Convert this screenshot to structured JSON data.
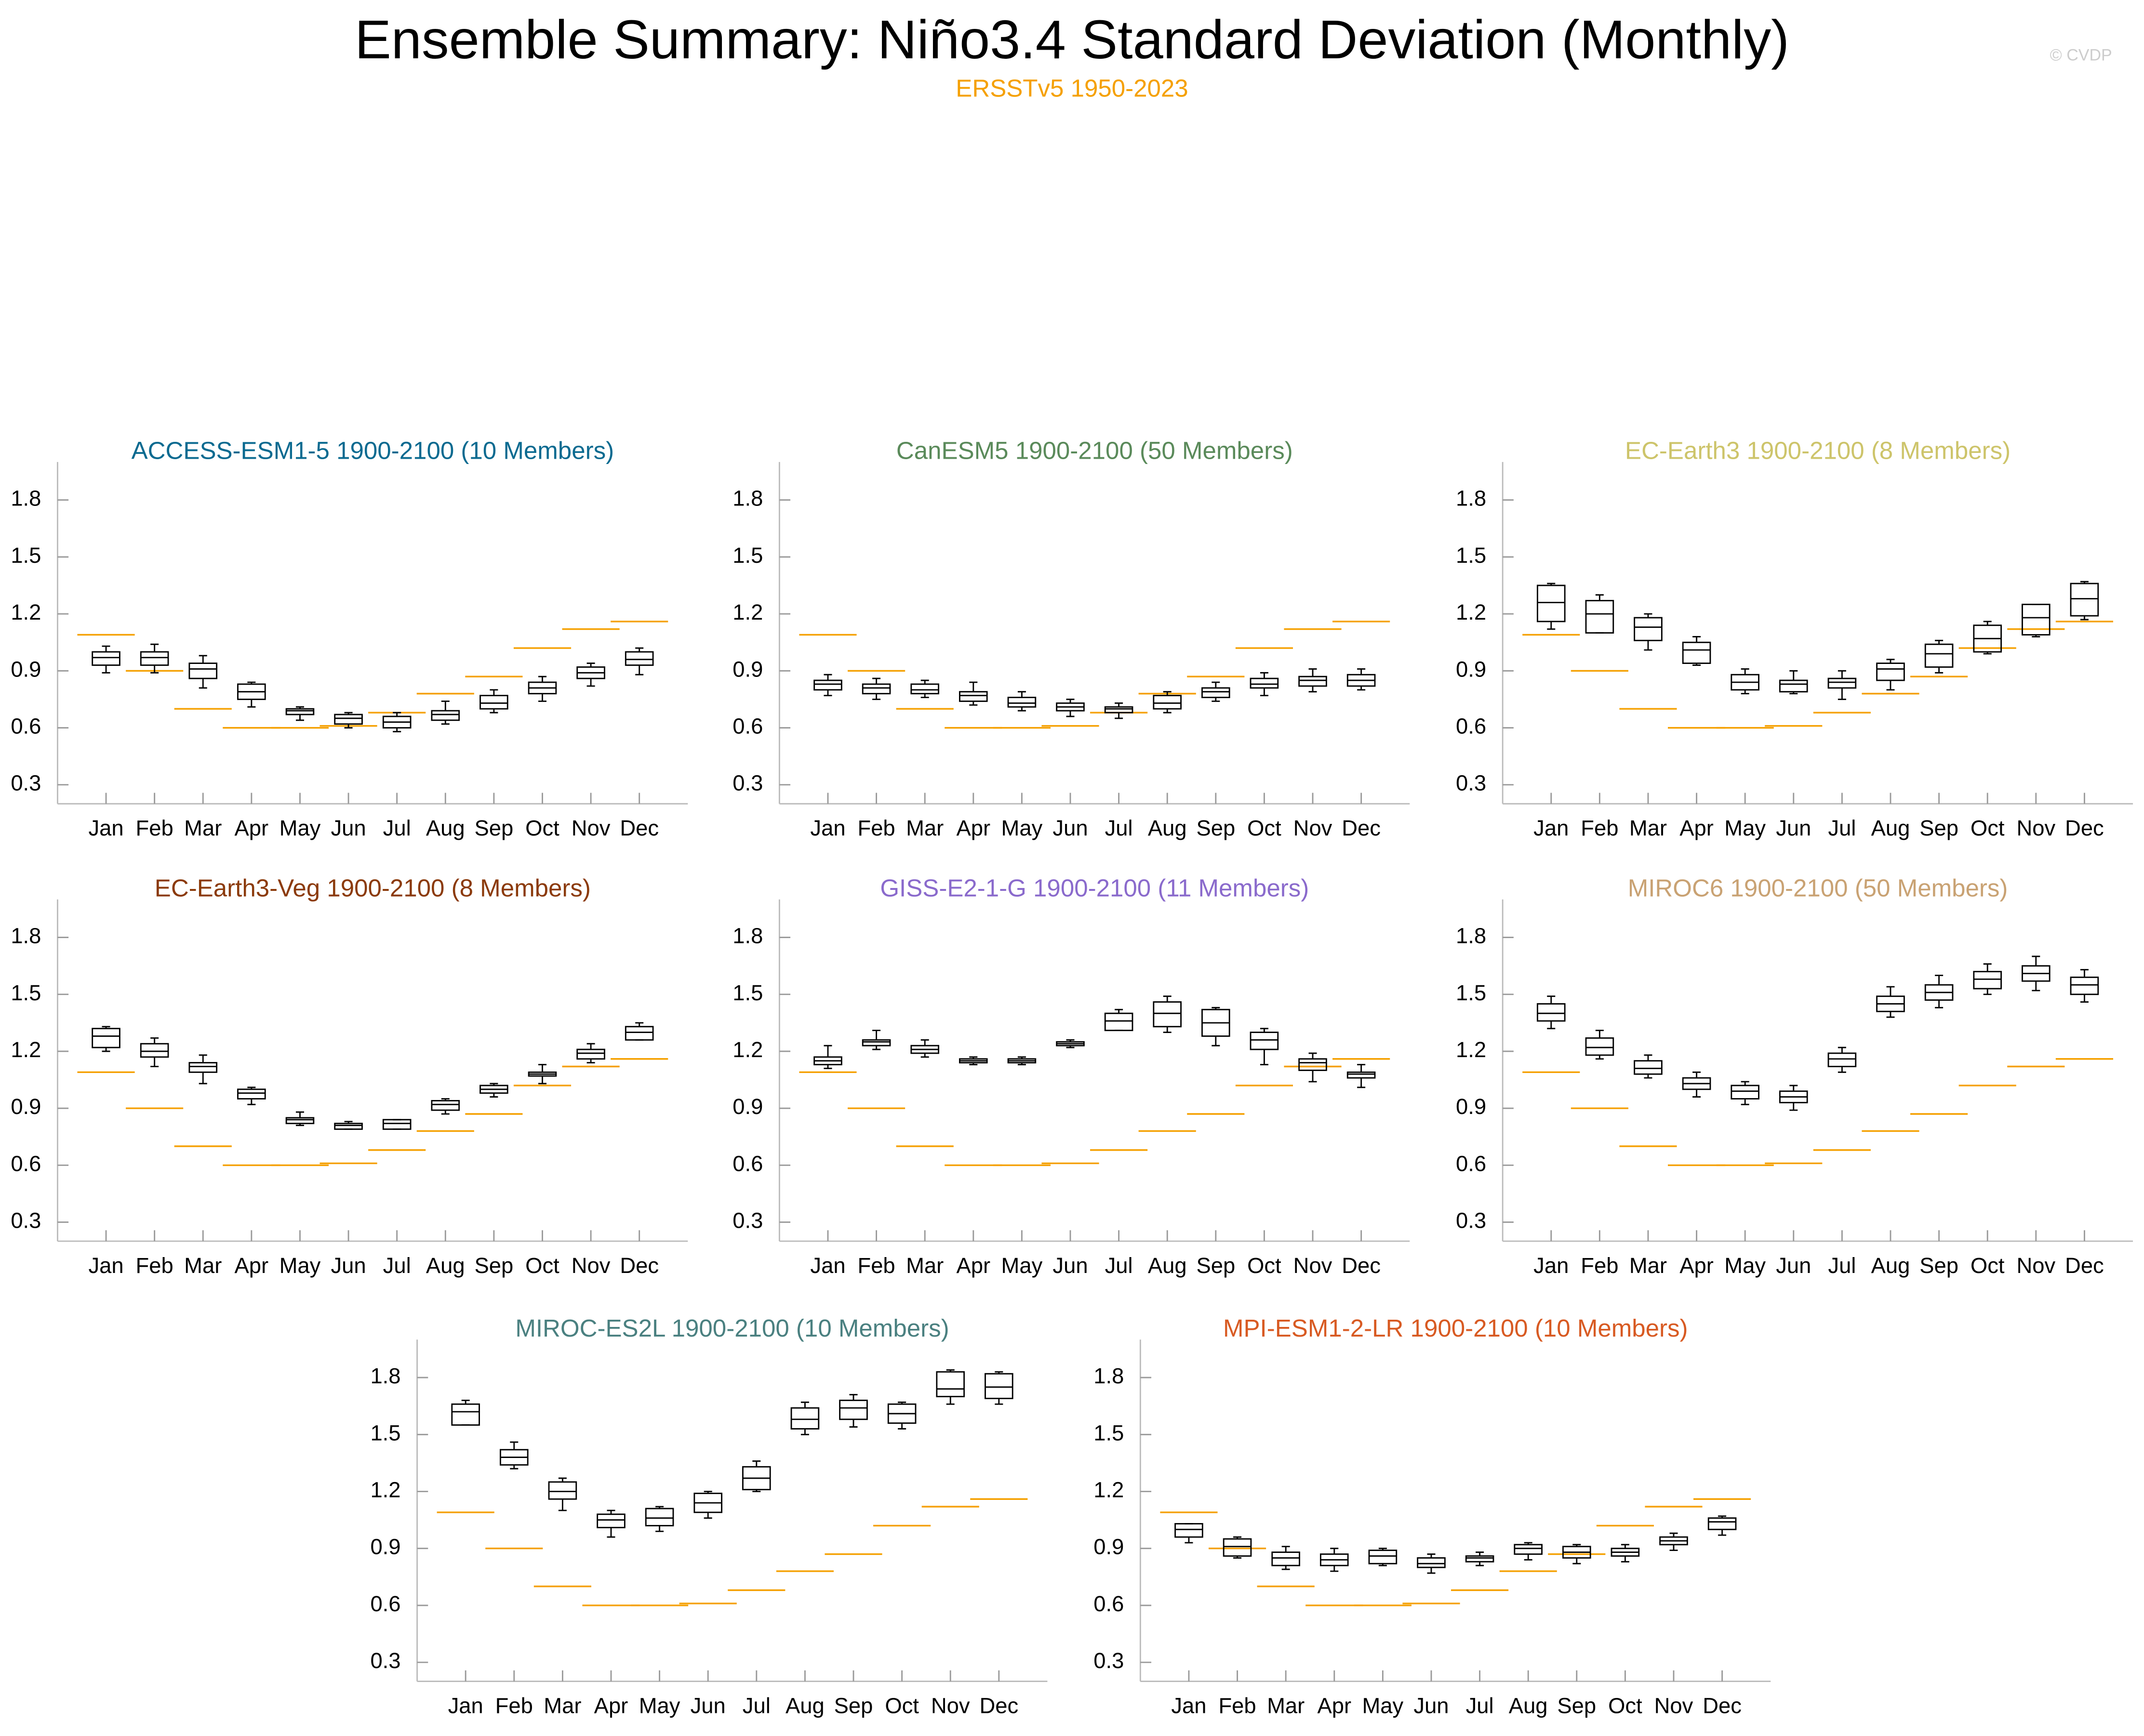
{
  "header": {
    "title": "Ensemble Summary: Niño3.4 Standard Deviation (Monthly)",
    "subtitle": "ERSSTv5 1950-2023",
    "subtitle_color": "#f5a000",
    "credit": "© CVDP"
  },
  "chart_data": [
    {
      "type": "box",
      "title": "ACCESS-ESM1-5 1900-2100 (10 Members)",
      "color": "#0a6a90",
      "categories": [
        "Jan",
        "Feb",
        "Mar",
        "Apr",
        "May",
        "Jun",
        "Jul",
        "Aug",
        "Sep",
        "Oct",
        "Nov",
        "Dec"
      ],
      "min": [
        0.89,
        0.89,
        0.81,
        0.71,
        0.64,
        0.6,
        0.58,
        0.62,
        0.68,
        0.74,
        0.82,
        0.88
      ],
      "q1": [
        0.93,
        0.93,
        0.86,
        0.75,
        0.67,
        0.62,
        0.6,
        0.64,
        0.7,
        0.78,
        0.86,
        0.93
      ],
      "median": [
        0.97,
        0.97,
        0.91,
        0.79,
        0.69,
        0.65,
        0.63,
        0.67,
        0.73,
        0.81,
        0.89,
        0.96
      ],
      "q3": [
        1.0,
        1.0,
        0.94,
        0.83,
        0.7,
        0.67,
        0.66,
        0.69,
        0.77,
        0.84,
        0.92,
        1.0
      ],
      "max": [
        1.03,
        1.04,
        0.98,
        0.84,
        0.71,
        0.68,
        0.68,
        0.74,
        0.8,
        0.87,
        0.94,
        1.02
      ],
      "reference": [
        1.09,
        0.9,
        0.7,
        0.6,
        0.6,
        0.61,
        0.68,
        0.78,
        0.87,
        1.02,
        1.12,
        1.16
      ],
      "reference_color": "#f5a000",
      "ylim": [
        0.2,
        2.0
      ],
      "yticks": [
        0.3,
        0.6,
        0.9,
        1.2,
        1.5,
        1.8
      ]
    },
    {
      "type": "box",
      "title": "CanESM5 1900-2100 (50 Members)",
      "color": "#5a8a5a",
      "categories": [
        "Jan",
        "Feb",
        "Mar",
        "Apr",
        "May",
        "Jun",
        "Jul",
        "Aug",
        "Sep",
        "Oct",
        "Nov",
        "Dec"
      ],
      "min": [
        0.77,
        0.75,
        0.76,
        0.72,
        0.69,
        0.66,
        0.65,
        0.68,
        0.74,
        0.77,
        0.79,
        0.8
      ],
      "q1": [
        0.8,
        0.78,
        0.78,
        0.74,
        0.71,
        0.69,
        0.68,
        0.7,
        0.76,
        0.81,
        0.82,
        0.82
      ],
      "median": [
        0.83,
        0.81,
        0.8,
        0.77,
        0.73,
        0.71,
        0.7,
        0.73,
        0.79,
        0.83,
        0.85,
        0.85
      ],
      "q3": [
        0.85,
        0.83,
        0.83,
        0.79,
        0.76,
        0.73,
        0.71,
        0.77,
        0.81,
        0.86,
        0.87,
        0.88
      ],
      "max": [
        0.88,
        0.86,
        0.85,
        0.84,
        0.79,
        0.75,
        0.73,
        0.79,
        0.84,
        0.89,
        0.91,
        0.91
      ],
      "reference": [
        1.09,
        0.9,
        0.7,
        0.6,
        0.6,
        0.61,
        0.68,
        0.78,
        0.87,
        1.02,
        1.12,
        1.16
      ],
      "reference_color": "#f5a000",
      "ylim": [
        0.2,
        2.0
      ],
      "yticks": [
        0.3,
        0.6,
        0.9,
        1.2,
        1.5,
        1.8
      ]
    },
    {
      "type": "box",
      "title": "EC-Earth3 1900-2100 (8 Members)",
      "color": "#cdc46a",
      "categories": [
        "Jan",
        "Feb",
        "Mar",
        "Apr",
        "May",
        "Jun",
        "Jul",
        "Aug",
        "Sep",
        "Oct",
        "Nov",
        "Dec"
      ],
      "min": [
        1.12,
        1.1,
        1.01,
        0.93,
        0.78,
        0.78,
        0.75,
        0.8,
        0.89,
        0.99,
        1.08,
        1.17
      ],
      "q1": [
        1.16,
        1.1,
        1.06,
        0.94,
        0.8,
        0.79,
        0.81,
        0.85,
        0.92,
        1.0,
        1.09,
        1.19
      ],
      "median": [
        1.26,
        1.2,
        1.13,
        1.01,
        0.84,
        0.83,
        0.84,
        0.91,
        0.99,
        1.07,
        1.18,
        1.28
      ],
      "q3": [
        1.35,
        1.27,
        1.18,
        1.05,
        0.88,
        0.85,
        0.86,
        0.94,
        1.04,
        1.14,
        1.25,
        1.36
      ],
      "max": [
        1.36,
        1.3,
        1.2,
        1.08,
        0.91,
        0.9,
        0.9,
        0.96,
        1.06,
        1.16,
        1.25,
        1.37
      ],
      "reference": [
        1.09,
        0.9,
        0.7,
        0.6,
        0.6,
        0.61,
        0.68,
        0.78,
        0.87,
        1.02,
        1.12,
        1.16
      ],
      "reference_color": "#f5a000",
      "ylim": [
        0.2,
        2.0
      ],
      "yticks": [
        0.3,
        0.6,
        0.9,
        1.2,
        1.5,
        1.8
      ]
    },
    {
      "type": "box",
      "title": "EC-Earth3-Veg 1900-2100 (8 Members)",
      "color": "#8b3a0a",
      "categories": [
        "Jan",
        "Feb",
        "Mar",
        "Apr",
        "May",
        "Jun",
        "Jul",
        "Aug",
        "Sep",
        "Oct",
        "Nov",
        "Dec"
      ],
      "min": [
        1.2,
        1.12,
        1.03,
        0.92,
        0.81,
        0.79,
        0.79,
        0.87,
        0.96,
        1.03,
        1.14,
        1.26
      ],
      "q1": [
        1.22,
        1.17,
        1.09,
        0.95,
        0.82,
        0.79,
        0.79,
        0.89,
        0.98,
        1.07,
        1.16,
        1.26
      ],
      "median": [
        1.28,
        1.2,
        1.12,
        0.98,
        0.84,
        0.81,
        0.82,
        0.92,
        1.0,
        1.08,
        1.19,
        1.3
      ],
      "q3": [
        1.32,
        1.24,
        1.14,
        1.0,
        0.85,
        0.82,
        0.84,
        0.94,
        1.02,
        1.09,
        1.21,
        1.33
      ],
      "max": [
        1.33,
        1.27,
        1.18,
        1.01,
        0.88,
        0.83,
        0.84,
        0.95,
        1.03,
        1.13,
        1.24,
        1.35
      ],
      "reference": [
        1.09,
        0.9,
        0.7,
        0.6,
        0.6,
        0.61,
        0.68,
        0.78,
        0.87,
        1.02,
        1.12,
        1.16
      ],
      "reference_color": "#f5a000",
      "ylim": [
        0.2,
        2.0
      ],
      "yticks": [
        0.3,
        0.6,
        0.9,
        1.2,
        1.5,
        1.8
      ]
    },
    {
      "type": "box",
      "title": "GISS-E2-1-G 1900-2100 (11 Members)",
      "color": "#8a6acc",
      "categories": [
        "Jan",
        "Feb",
        "Mar",
        "Apr",
        "May",
        "Jun",
        "Jul",
        "Aug",
        "Sep",
        "Oct",
        "Nov",
        "Dec"
      ],
      "min": [
        1.11,
        1.21,
        1.17,
        1.13,
        1.13,
        1.22,
        1.31,
        1.3,
        1.23,
        1.13,
        1.04,
        1.01
      ],
      "q1": [
        1.13,
        1.23,
        1.19,
        1.14,
        1.14,
        1.23,
        1.31,
        1.33,
        1.28,
        1.21,
        1.1,
        1.06
      ],
      "median": [
        1.15,
        1.25,
        1.21,
        1.15,
        1.15,
        1.24,
        1.36,
        1.4,
        1.35,
        1.26,
        1.14,
        1.08
      ],
      "q3": [
        1.17,
        1.26,
        1.23,
        1.16,
        1.16,
        1.25,
        1.4,
        1.46,
        1.42,
        1.3,
        1.16,
        1.09
      ],
      "max": [
        1.23,
        1.31,
        1.26,
        1.17,
        1.17,
        1.26,
        1.42,
        1.49,
        1.43,
        1.32,
        1.19,
        1.13
      ],
      "reference": [
        1.09,
        0.9,
        0.7,
        0.6,
        0.6,
        0.61,
        0.68,
        0.78,
        0.87,
        1.02,
        1.12,
        1.16
      ],
      "reference_color": "#f5a000",
      "ylim": [
        0.2,
        2.0
      ],
      "yticks": [
        0.3,
        0.6,
        0.9,
        1.2,
        1.5,
        1.8
      ]
    },
    {
      "type": "box",
      "title": "MIROC6 1900-2100 (50 Members)",
      "color": "#c9a273",
      "categories": [
        "Jan",
        "Feb",
        "Mar",
        "Apr",
        "May",
        "Jun",
        "Jul",
        "Aug",
        "Sep",
        "Oct",
        "Nov",
        "Dec"
      ],
      "min": [
        1.32,
        1.16,
        1.06,
        0.96,
        0.92,
        0.89,
        1.09,
        1.38,
        1.43,
        1.5,
        1.52,
        1.46
      ],
      "q1": [
        1.36,
        1.18,
        1.08,
        1.0,
        0.95,
        0.93,
        1.12,
        1.41,
        1.47,
        1.53,
        1.57,
        1.5
      ],
      "median": [
        1.4,
        1.22,
        1.11,
        1.03,
        0.99,
        0.96,
        1.16,
        1.45,
        1.51,
        1.58,
        1.61,
        1.55
      ],
      "q3": [
        1.45,
        1.27,
        1.15,
        1.06,
        1.02,
        0.99,
        1.19,
        1.49,
        1.55,
        1.62,
        1.65,
        1.59
      ],
      "max": [
        1.49,
        1.31,
        1.18,
        1.09,
        1.04,
        1.02,
        1.22,
        1.54,
        1.6,
        1.66,
        1.7,
        1.63
      ],
      "reference": [
        1.09,
        0.9,
        0.7,
        0.6,
        0.6,
        0.61,
        0.68,
        0.78,
        0.87,
        1.02,
        1.12,
        1.16
      ],
      "reference_color": "#f5a000",
      "ylim": [
        0.2,
        2.0
      ],
      "yticks": [
        0.3,
        0.6,
        0.9,
        1.2,
        1.5,
        1.8
      ]
    },
    {
      "type": "box",
      "title": "MIROC-ES2L 1900-2100 (10 Members)",
      "color": "#4a8080",
      "categories": [
        "Jan",
        "Feb",
        "Mar",
        "Apr",
        "May",
        "Jun",
        "Jul",
        "Aug",
        "Sep",
        "Oct",
        "Nov",
        "Dec"
      ],
      "min": [
        1.55,
        1.32,
        1.1,
        0.96,
        0.99,
        1.06,
        1.2,
        1.5,
        1.54,
        1.53,
        1.66,
        1.66
      ],
      "q1": [
        1.55,
        1.34,
        1.16,
        1.01,
        1.02,
        1.09,
        1.21,
        1.53,
        1.58,
        1.56,
        1.7,
        1.69
      ],
      "median": [
        1.62,
        1.38,
        1.2,
        1.05,
        1.06,
        1.14,
        1.27,
        1.58,
        1.64,
        1.61,
        1.74,
        1.75
      ],
      "q3": [
        1.66,
        1.42,
        1.25,
        1.08,
        1.11,
        1.19,
        1.33,
        1.64,
        1.68,
        1.66,
        1.83,
        1.82
      ],
      "max": [
        1.68,
        1.46,
        1.27,
        1.1,
        1.12,
        1.2,
        1.36,
        1.67,
        1.71,
        1.67,
        1.84,
        1.83
      ],
      "reference": [
        1.09,
        0.9,
        0.7,
        0.6,
        0.6,
        0.61,
        0.68,
        0.78,
        0.87,
        1.02,
        1.12,
        1.16
      ],
      "reference_color": "#f5a000",
      "ylim": [
        0.2,
        2.0
      ],
      "yticks": [
        0.3,
        0.6,
        0.9,
        1.2,
        1.5,
        1.8
      ]
    },
    {
      "type": "box",
      "title": "MPI-ESM1-2-LR 1900-2100 (10 Members)",
      "color": "#d85a22",
      "categories": [
        "Jan",
        "Feb",
        "Mar",
        "Apr",
        "May",
        "Jun",
        "Jul",
        "Aug",
        "Sep",
        "Oct",
        "Nov",
        "Dec"
      ],
      "min": [
        0.93,
        0.85,
        0.79,
        0.78,
        0.81,
        0.77,
        0.81,
        0.84,
        0.82,
        0.83,
        0.89,
        0.97
      ],
      "q1": [
        0.96,
        0.86,
        0.81,
        0.81,
        0.82,
        0.8,
        0.83,
        0.87,
        0.85,
        0.86,
        0.92,
        1.0
      ],
      "median": [
        1.0,
        0.91,
        0.85,
        0.84,
        0.86,
        0.82,
        0.85,
        0.9,
        0.88,
        0.88,
        0.94,
        1.04
      ],
      "q3": [
        1.03,
        0.95,
        0.88,
        0.87,
        0.89,
        0.85,
        0.86,
        0.92,
        0.91,
        0.9,
        0.96,
        1.06
      ],
      "max": [
        1.03,
        0.96,
        0.91,
        0.9,
        0.9,
        0.87,
        0.88,
        0.93,
        0.92,
        0.92,
        0.98,
        1.07
      ],
      "reference": [
        1.09,
        0.9,
        0.7,
        0.6,
        0.6,
        0.61,
        0.68,
        0.78,
        0.87,
        1.02,
        1.12,
        1.16
      ],
      "reference_color": "#f5a000",
      "ylim": [
        0.2,
        2.0
      ],
      "yticks": [
        0.3,
        0.6,
        0.9,
        1.2,
        1.5,
        1.8
      ]
    }
  ]
}
